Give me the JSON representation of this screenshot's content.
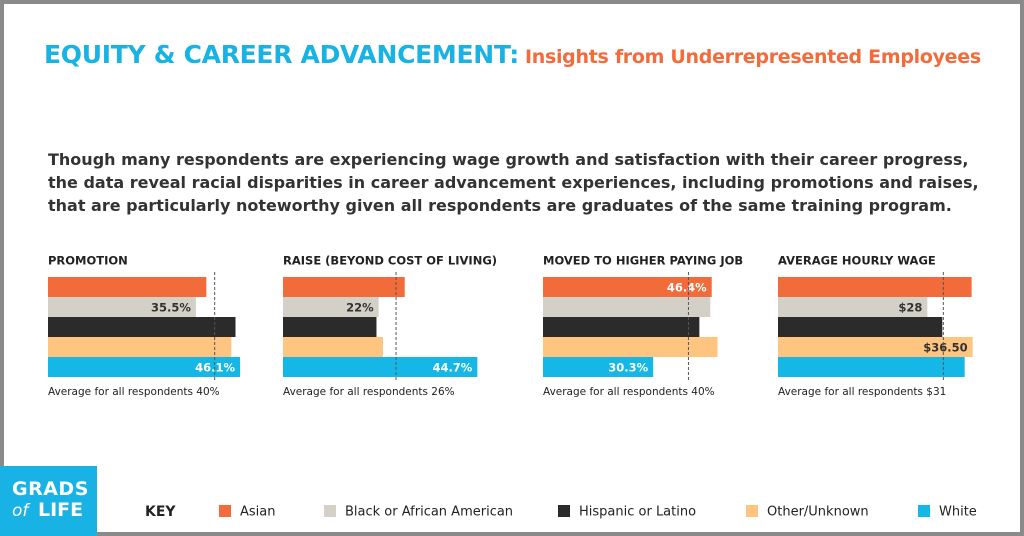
{
  "title": "EQUITY & CAREER ADVANCEMENT:",
  "subtitle": "Insights from Underrepresented Employees",
  "body": "Though many respondents are experiencing wage growth and satisfaction with their career progress, the data reveal racial disparities in career advancement experiences, including promotions and raises, that are particularly noteworthy given all respondents are graduates of the same training program.",
  "logo": {
    "line1": "GRADS",
    "line2": "of",
    "line3": "LIFE"
  },
  "legend": {
    "title": "KEY",
    "items": [
      {
        "name": "Asian",
        "color": "#f26b3a"
      },
      {
        "name": "Black or African American",
        "color": "#d3d0c8"
      },
      {
        "name": "Hispanic or Latino",
        "color": "#2b2b2b"
      },
      {
        "name": "Other/Unknown",
        "color": "#fdc57f"
      },
      {
        "name": "White",
        "color": "#15b7e6"
      }
    ]
  },
  "chart_data": [
    {
      "type": "bar",
      "title": "PROMOTION",
      "values": [
        38,
        35.5,
        45,
        44,
        46.1
      ],
      "value_labels": [
        null,
        "35.5%",
        null,
        null,
        "46.1%"
      ],
      "xlim": [
        0,
        48
      ],
      "average": 40,
      "average_label": "Average for all respondents  40%"
    },
    {
      "type": "bar",
      "title": "RAISE  (BEYOND COST OF LIVING)",
      "values": [
        28,
        22,
        21.5,
        23,
        44.7
      ],
      "value_labels": [
        null,
        "22%",
        null,
        null,
        "44.7%"
      ],
      "xlim": [
        0,
        46
      ],
      "average": 26,
      "average_label": "Average for all respondents 26%"
    },
    {
      "type": "bar",
      "title": "MOVED TO HIGHER PAYING JOB",
      "values": [
        46.4,
        46,
        43,
        48,
        30.3
      ],
      "value_labels": [
        "46.4%",
        null,
        null,
        null,
        "30.3%"
      ],
      "xlim": [
        0,
        55
      ],
      "average": 40,
      "average_label": "Average for all respondents 40%"
    },
    {
      "type": "bar",
      "title": "AVERAGE HOURLY WAGE",
      "values": [
        36.3,
        28,
        30.8,
        36.5,
        35
      ],
      "value_labels": [
        null,
        "$28",
        null,
        "$36.50",
        null
      ],
      "xlim": [
        0,
        37.5
      ],
      "average": 31,
      "average_label": "Average for all respondents $31"
    }
  ]
}
